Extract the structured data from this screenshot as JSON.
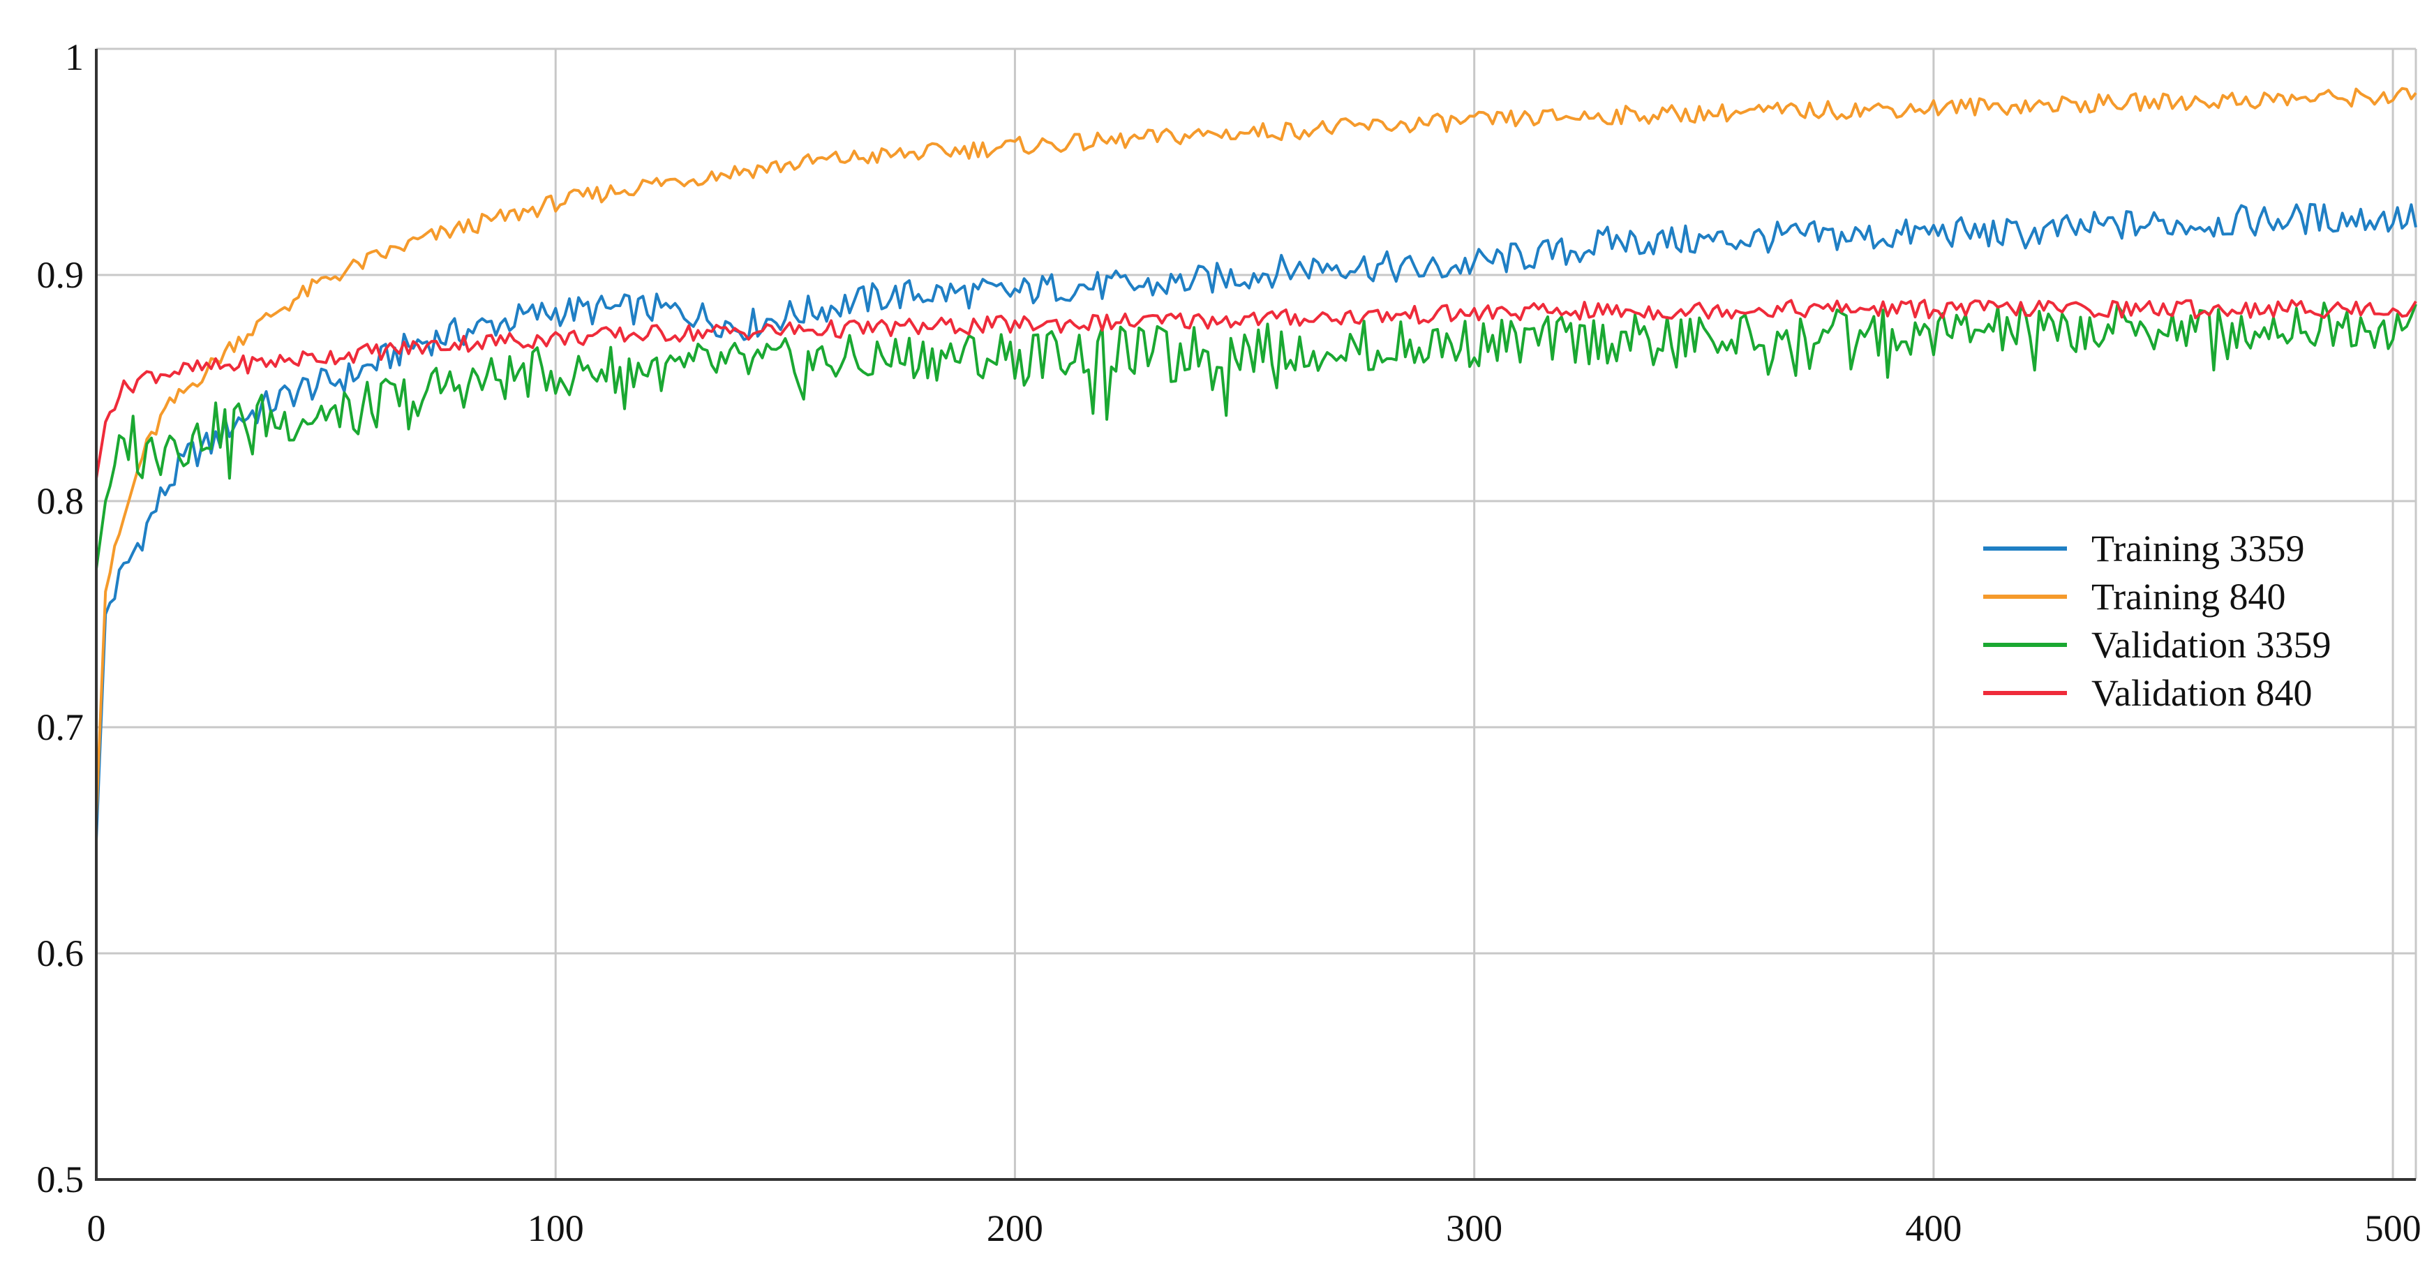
{
  "chart_data": {
    "type": "line",
    "title": "",
    "xlabel": "",
    "ylabel": "",
    "xlim": [
      0,
      500
    ],
    "ylim": [
      0.5,
      1.0
    ],
    "xticks": [
      0,
      100,
      200,
      300,
      400,
      500
    ],
    "yticks": [
      0.5,
      0.6,
      0.7,
      0.8,
      0.9,
      1.0
    ],
    "xtick_labels": [
      "0",
      "100",
      "200",
      "300",
      "400",
      "500"
    ],
    "ytick_labels": [
      "0.5",
      "0.6",
      "0.7",
      "0.8",
      "0.9",
      "1"
    ],
    "grid": true,
    "legend_position": "right",
    "series": [
      {
        "name": "Training 3359",
        "color": "#1f7fc4",
        "x": [
          0,
          2,
          5,
          10,
          15,
          20,
          25,
          30,
          35,
          40,
          45,
          50,
          55,
          60,
          65,
          70,
          80,
          90,
          100,
          120,
          130,
          140,
          150,
          170,
          180,
          200,
          210,
          230,
          250,
          270,
          290,
          300,
          310,
          320,
          330,
          350,
          370,
          390,
          400,
          420,
          440,
          460,
          480,
          500
        ],
        "y": [
          0.65,
          0.75,
          0.765,
          0.785,
          0.805,
          0.82,
          0.825,
          0.835,
          0.84,
          0.845,
          0.85,
          0.852,
          0.855,
          0.86,
          0.865,
          0.87,
          0.875,
          0.88,
          0.884,
          0.885,
          0.883,
          0.877,
          0.882,
          0.89,
          0.892,
          0.892,
          0.895,
          0.895,
          0.9,
          0.905,
          0.902,
          0.905,
          0.908,
          0.91,
          0.915,
          0.915,
          0.917,
          0.917,
          0.919,
          0.918,
          0.922,
          0.923,
          0.925,
          0.925
        ]
      },
      {
        "name": "Training 840",
        "color": "#f59a2b",
        "x": [
          0,
          2,
          5,
          10,
          15,
          20,
          25,
          30,
          40,
          50,
          60,
          70,
          80,
          90,
          100,
          120,
          140,
          160,
          180,
          200,
          220,
          240,
          260,
          280,
          300,
          320,
          340,
          360,
          380,
          400,
          420,
          440,
          460,
          480,
          500
        ],
        "y": [
          0.66,
          0.76,
          0.785,
          0.82,
          0.84,
          0.85,
          0.86,
          0.87,
          0.885,
          0.898,
          0.907,
          0.915,
          0.921,
          0.926,
          0.932,
          0.94,
          0.946,
          0.951,
          0.954,
          0.957,
          0.959,
          0.962,
          0.964,
          0.966,
          0.968,
          0.97,
          0.971,
          0.972,
          0.973,
          0.974,
          0.975,
          0.976,
          0.977,
          0.978,
          0.979
        ]
      },
      {
        "name": "Validation 3359",
        "color": "#1aa832",
        "x": [
          0,
          2,
          5,
          8,
          10,
          12,
          15,
          20,
          25,
          30,
          35,
          40,
          45,
          50,
          55,
          60,
          65,
          70,
          80,
          90,
          100,
          120,
          140,
          160,
          180,
          200,
          220,
          240,
          260,
          280,
          300,
          320,
          340,
          360,
          380,
          400,
          420,
          440,
          460,
          480,
          500
        ],
        "y": [
          0.77,
          0.8,
          0.82,
          0.83,
          0.815,
          0.825,
          0.83,
          0.825,
          0.832,
          0.835,
          0.838,
          0.835,
          0.838,
          0.84,
          0.84,
          0.842,
          0.845,
          0.848,
          0.852,
          0.855,
          0.858,
          0.859,
          0.86,
          0.862,
          0.864,
          0.865,
          0.866,
          0.867,
          0.868,
          0.869,
          0.87,
          0.871,
          0.872,
          0.873,
          0.874,
          0.875,
          0.876,
          0.876,
          0.877,
          0.878,
          0.878
        ]
      },
      {
        "name": "Validation 840",
        "color": "#ef2b3a",
        "x": [
          0,
          2,
          5,
          10,
          15,
          20,
          30,
          40,
          50,
          60,
          70,
          80,
          100,
          120,
          140,
          160,
          180,
          200,
          220,
          240,
          260,
          280,
          300,
          320,
          340,
          360,
          380,
          400,
          420,
          440,
          460,
          480,
          500
        ],
        "y": [
          0.81,
          0.835,
          0.848,
          0.855,
          0.857,
          0.858,
          0.86,
          0.862,
          0.864,
          0.866,
          0.868,
          0.87,
          0.872,
          0.874,
          0.875,
          0.876,
          0.877,
          0.878,
          0.879,
          0.88,
          0.881,
          0.882,
          0.883,
          0.884,
          0.884,
          0.885,
          0.885,
          0.885,
          0.885,
          0.885,
          0.885,
          0.885,
          0.885
        ]
      }
    ]
  }
}
